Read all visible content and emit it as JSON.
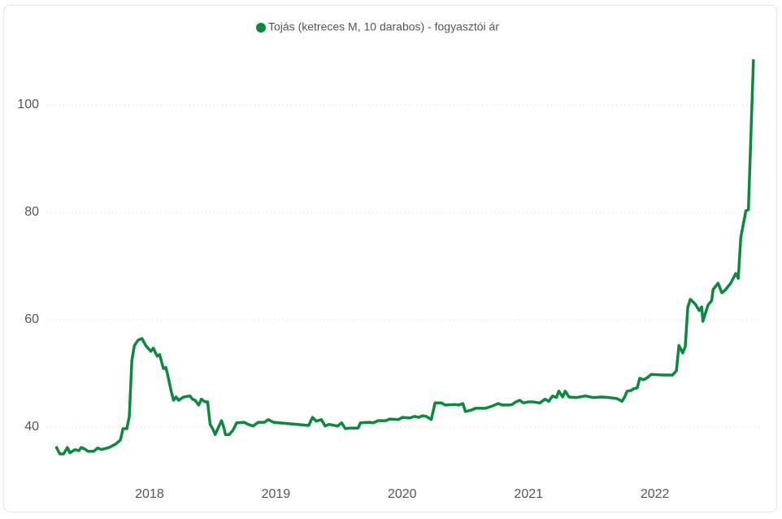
{
  "chart_data": {
    "type": "line",
    "series": [
      {
        "name": "Tojás (ketreces M, 10 darabos) - fogyasztói ár",
        "color": "#0a8a3c",
        "values": [
          36.4,
          35.0,
          35.0,
          36.2,
          35.2,
          35.8,
          35.6,
          36.2,
          35.9,
          35.5,
          35.5,
          36.1,
          35.8,
          36.2,
          36.8,
          37.6,
          39.7,
          39.7,
          42.0,
          52.4,
          55.2,
          56.2,
          56.5,
          55.2,
          54.1,
          54.7,
          53.2,
          53.5,
          50.9,
          51.1,
          49.1,
          46.8,
          45.0,
          45.6,
          45.0,
          45.6,
          45.8,
          45.2,
          45.0,
          44.1,
          45.2,
          44.7,
          44.7,
          40.5,
          39.7,
          38.6,
          39.7,
          41.2,
          39.8,
          38.6,
          38.6,
          39.4,
          40.8,
          40.9,
          40.5,
          40.2,
          40.9,
          40.9,
          41.4,
          40.9,
          40.3,
          41.8,
          41.1,
          41.4,
          40.2,
          40.5,
          40.2,
          40.8,
          39.7,
          39.8,
          39.8,
          40.8,
          40.9,
          40.8,
          41.2,
          41.2,
          41.5,
          41.4,
          41.8,
          41.7,
          42.0,
          41.8,
          42.1,
          42.0,
          41.4,
          44.5,
          44.5,
          44.1,
          44.2,
          44.1,
          44.4,
          42.9,
          43.2,
          43.5,
          43.5,
          43.9,
          44.4,
          44.1,
          44.1,
          44.2,
          44.7,
          45.0,
          44.5,
          44.7,
          44.7,
          44.5,
          45.2,
          44.8,
          45.8,
          45.5,
          46.7,
          45.6,
          46.7,
          45.6,
          45.5,
          45.8,
          45.5,
          45.6,
          45.5,
          45.3,
          44.8,
          45.6,
          46.7,
          46.8,
          47.1,
          47.3,
          49.1,
          48.8,
          49.2,
          49.8,
          49.7,
          49.7,
          50.5,
          55.2,
          53.8,
          55.0,
          62.3,
          63.8,
          62.9,
          61.7,
          62.4,
          59.7,
          62.7,
          63.6,
          65.6,
          66.8,
          65.0,
          65.6,
          66.8,
          68.6,
          67.7,
          75.3,
          80.3,
          80.5,
          108.5
        ]
      }
    ],
    "x": [
      2017.26,
      2017.29,
      2017.32,
      2017.35,
      2017.37,
      2017.41,
      2017.44,
      2017.46,
      2017.49,
      2017.51,
      2017.56,
      2017.59,
      2017.62,
      2017.68,
      2017.73,
      2017.77,
      2017.79,
      2017.82,
      2017.84,
      2017.86,
      2017.88,
      2017.91,
      2017.94,
      2017.97,
      2018.01,
      2018.03,
      2018.06,
      2018.08,
      2018.11,
      2018.13,
      2018.15,
      2018.17,
      2018.19,
      2018.21,
      2018.23,
      2018.27,
      2018.32,
      2018.34,
      2018.36,
      2018.39,
      2018.41,
      2018.44,
      2018.46,
      2018.48,
      2018.5,
      2018.52,
      2018.54,
      2018.57,
      2018.59,
      2018.6,
      2018.63,
      2018.66,
      2018.69,
      2018.75,
      2018.78,
      2018.82,
      2018.86,
      2018.91,
      2018.94,
      2018.98,
      2019.26,
      2019.29,
      2019.32,
      2019.36,
      2019.39,
      2019.42,
      2019.49,
      2019.52,
      2019.55,
      2019.58,
      2019.65,
      2019.67,
      2019.74,
      2019.77,
      2019.81,
      2019.87,
      2019.9,
      2019.97,
      2020.0,
      2020.06,
      2020.1,
      2020.13,
      2020.16,
      2020.19,
      2020.23,
      2020.26,
      2020.31,
      2020.34,
      2020.42,
      2020.45,
      2020.48,
      2020.5,
      2020.55,
      2020.58,
      2020.66,
      2020.71,
      2020.76,
      2020.79,
      2020.84,
      2020.87,
      2020.9,
      2020.93,
      2020.96,
      2021.0,
      2021.03,
      2021.09,
      2021.13,
      2021.16,
      2021.19,
      2021.22,
      2021.24,
      2021.27,
      2021.29,
      2021.32,
      2021.38,
      2021.45,
      2021.51,
      2021.58,
      2021.64,
      2021.7,
      2021.74,
      2021.76,
      2021.78,
      2021.81,
      2021.83,
      2021.86,
      2021.88,
      2021.91,
      2021.94,
      2021.97,
      2022.06,
      2022.14,
      2022.17,
      2022.19,
      2022.22,
      2022.24,
      2022.26,
      2022.28,
      2022.32,
      2022.35,
      2022.37,
      2022.38,
      2022.42,
      2022.45,
      2022.46,
      2022.5,
      2022.53,
      2022.56,
      2022.6,
      2022.64,
      2022.66,
      2022.68,
      2022.72,
      2022.74,
      2022.78
    ],
    "xlim": [
      2017,
      2022.8
    ],
    "xticks": [
      2018,
      2019,
      2020,
      2021,
      2022
    ],
    "ylim": [
      30,
      110
    ],
    "yticks": [
      40,
      60,
      80,
      100
    ],
    "grid": true
  }
}
